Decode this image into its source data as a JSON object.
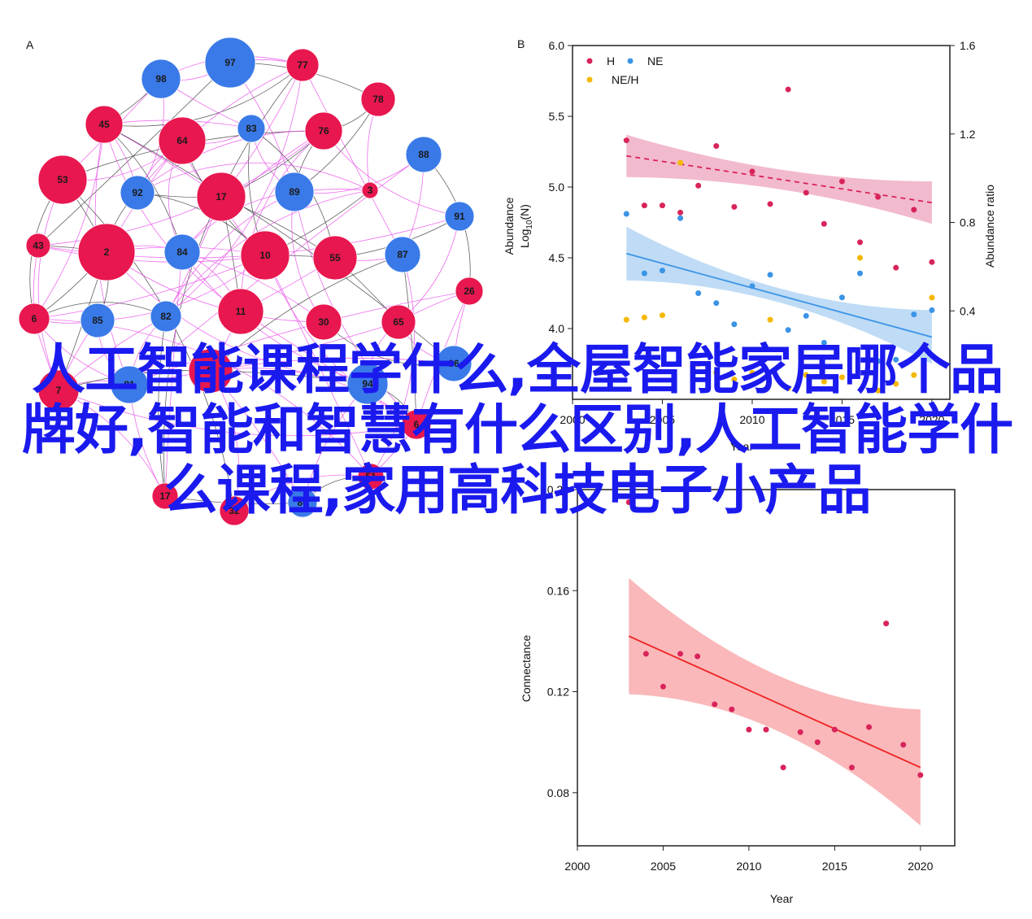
{
  "overlay_title": "人工智能课程学什么,全屋智能家居哪个品牌好,智能和智慧有什么区别,人工智能学什么课程,家用高科技电子小产品",
  "colors": {
    "red_node": "#e8174f",
    "blue_node": "#3a7ae8",
    "edge_magenta": "#ea55ea",
    "edge_dark": "#444444",
    "series_H": "#d8245a",
    "series_NE": "#3b94e6",
    "series_NEH": "#f5b800",
    "band_H": "#eea3bd",
    "band_NE": "#a9cff3",
    "conn_line": "#ee2222",
    "band_conn": "#f8a0a3",
    "title_overlay": "#1a1aef"
  },
  "chart_data": [
    {
      "panel": "A",
      "type": "network",
      "nodes": [
        {
          "id": "97",
          "color": "blue"
        },
        {
          "id": "98",
          "color": "blue"
        },
        {
          "id": "77",
          "color": "red"
        },
        {
          "id": "78",
          "color": "red"
        },
        {
          "id": "45",
          "color": "red"
        },
        {
          "id": "64",
          "color": "red"
        },
        {
          "id": "83",
          "color": "blue"
        },
        {
          "id": "76",
          "color": "red"
        },
        {
          "id": "88",
          "color": "blue"
        },
        {
          "id": "53",
          "color": "red"
        },
        {
          "id": "92",
          "color": "blue"
        },
        {
          "id": "17",
          "color": "red"
        },
        {
          "id": "89",
          "color": "blue"
        },
        {
          "id": "3",
          "color": "red"
        },
        {
          "id": "91",
          "color": "blue"
        },
        {
          "id": "43",
          "color": "red"
        },
        {
          "id": "2",
          "color": "red"
        },
        {
          "id": "84",
          "color": "blue"
        },
        {
          "id": "10",
          "color": "red"
        },
        {
          "id": "55",
          "color": "red"
        },
        {
          "id": "87",
          "color": "blue"
        },
        {
          "id": "26",
          "color": "red"
        },
        {
          "id": "6",
          "color": "red"
        },
        {
          "id": "85",
          "color": "blue"
        },
        {
          "id": "82",
          "color": "blue"
        },
        {
          "id": "11",
          "color": "red"
        },
        {
          "id": "30",
          "color": "red"
        },
        {
          "id": "65",
          "color": "red"
        },
        {
          "id": "96",
          "color": "blue"
        },
        {
          "id": "7",
          "color": "red"
        },
        {
          "id": "81",
          "color": "blue"
        },
        {
          "id": "49",
          "color": "red"
        },
        {
          "id": "94",
          "color": "blue"
        },
        {
          "id": "6",
          "color": "red"
        },
        {
          "id": "51",
          "color": "red"
        },
        {
          "id": "32",
          "color": "red"
        },
        {
          "id": "86",
          "color": "blue"
        },
        {
          "id": "17",
          "color": "red"
        }
      ]
    },
    {
      "panel": "B",
      "type": "scatter",
      "xlabel": "Year",
      "ylabel": "Abundance Log10(N)",
      "y2label": "Abundance ratio",
      "xticks": [
        2000,
        2005,
        2010,
        2015,
        2020
      ],
      "yticks": [
        4.0,
        4.5,
        5.0,
        5.5,
        6.0
      ],
      "y2ticks": [
        0.4,
        0.8,
        1.2,
        1.6
      ],
      "xlim": [
        2000,
        2021
      ],
      "ylim": [
        3.5,
        6.0
      ],
      "y2lim": [
        0.0,
        1.6
      ],
      "legend": "top-left",
      "series": [
        {
          "name": "H",
          "color": "#d8245a",
          "axis": "left",
          "points": [
            [
              2003,
              5.33
            ],
            [
              2004,
              4.87
            ],
            [
              2005,
              4.87
            ],
            [
              2006,
              4.82
            ],
            [
              2007,
              5.01
            ],
            [
              2008,
              5.29
            ],
            [
              2009,
              4.86
            ],
            [
              2010,
              5.11
            ],
            [
              2011,
              4.88
            ],
            [
              2012,
              5.69
            ],
            [
              2013,
              4.96
            ],
            [
              2014,
              4.74
            ],
            [
              2015,
              5.04
            ],
            [
              2016,
              4.61
            ],
            [
              2017,
              4.93
            ],
            [
              2018,
              4.43
            ],
            [
              2019,
              4.84
            ],
            [
              2020,
              4.47
            ]
          ],
          "trend": [
            [
              2003,
              5.22
            ],
            [
              2020,
              4.89
            ]
          ]
        },
        {
          "name": "NE",
          "color": "#3b94e6",
          "axis": "left",
          "points": [
            [
              2003,
              4.81
            ],
            [
              2004,
              4.39
            ],
            [
              2005,
              4.41
            ],
            [
              2006,
              4.78
            ],
            [
              2007,
              4.25
            ],
            [
              2008,
              4.18
            ],
            [
              2009,
              4.03
            ],
            [
              2010,
              4.3
            ],
            [
              2011,
              4.38
            ],
            [
              2012,
              3.99
            ],
            [
              2013,
              4.09
            ],
            [
              2014,
              3.9
            ],
            [
              2015,
              4.22
            ],
            [
              2016,
              4.39
            ],
            [
              2017,
              3.77
            ],
            [
              2018,
              3.78
            ],
            [
              2019,
              4.1
            ],
            [
              2020,
              4.13
            ]
          ],
          "trend": [
            [
              2003,
              4.53
            ],
            [
              2020,
              3.94
            ]
          ]
        },
        {
          "name": "NE/H",
          "color": "#f5b800",
          "axis": "right",
          "points": [
            [
              2003,
              0.36
            ],
            [
              2004,
              0.37
            ],
            [
              2005,
              0.38
            ],
            [
              2006,
              1.07
            ],
            [
              2007,
              0.16
            ],
            [
              2008,
              0.12
            ],
            [
              2009,
              0.09
            ],
            [
              2010,
              0.12
            ],
            [
              2011,
              0.36
            ],
            [
              2012,
              0.05
            ],
            [
              2013,
              0.11
            ],
            [
              2014,
              0.08
            ],
            [
              2015,
              0.1
            ],
            [
              2016,
              0.64
            ],
            [
              2017,
              0.04
            ],
            [
              2018,
              0.07
            ],
            [
              2019,
              0.11
            ],
            [
              2020,
              0.46
            ]
          ]
        }
      ]
    },
    {
      "panel": "C",
      "type": "scatter",
      "xlabel": "Year",
      "ylabel": "Connectance",
      "xticks": [
        2000,
        2005,
        2010,
        2015,
        2020
      ],
      "yticks": [
        0.08,
        0.12,
        0.16,
        0.2
      ],
      "xlim": [
        2000,
        2022
      ],
      "ylim": [
        0.059,
        0.2
      ],
      "series": [
        {
          "name": "Connectance",
          "color": "#d8245a",
          "points": [
            [
              2003,
              0.195
            ],
            [
              2004,
              0.135
            ],
            [
              2005,
              0.122
            ],
            [
              2006,
              0.135
            ],
            [
              2007,
              0.134
            ],
            [
              2008,
              0.115
            ],
            [
              2009,
              0.113
            ],
            [
              2010,
              0.105
            ],
            [
              2011,
              0.105
            ],
            [
              2012,
              0.09
            ],
            [
              2013,
              0.104
            ],
            [
              2014,
              0.1
            ],
            [
              2015,
              0.105
            ],
            [
              2016,
              0.09
            ],
            [
              2017,
              0.106
            ],
            [
              2018,
              0.147
            ],
            [
              2019,
              0.099
            ],
            [
              2020,
              0.087
            ]
          ],
          "trend": [
            [
              2003,
              0.142
            ],
            [
              2020,
              0.09
            ]
          ]
        }
      ]
    }
  ],
  "labels": {
    "panel_a": "A",
    "panel_b": "B",
    "legend_h": "H",
    "legend_ne": "NE",
    "legend_neh": "NE/H",
    "b_xlabel": "Year",
    "b_ylabel1": "Abundance",
    "b_ylabel2": "Log",
    "b_ylabel2_sub": "10",
    "b_ylabel2_tail": "(N)",
    "b_y2label": "Abundance ratio",
    "c_xlabel": "Year",
    "c_ylabel": "Connectance"
  }
}
